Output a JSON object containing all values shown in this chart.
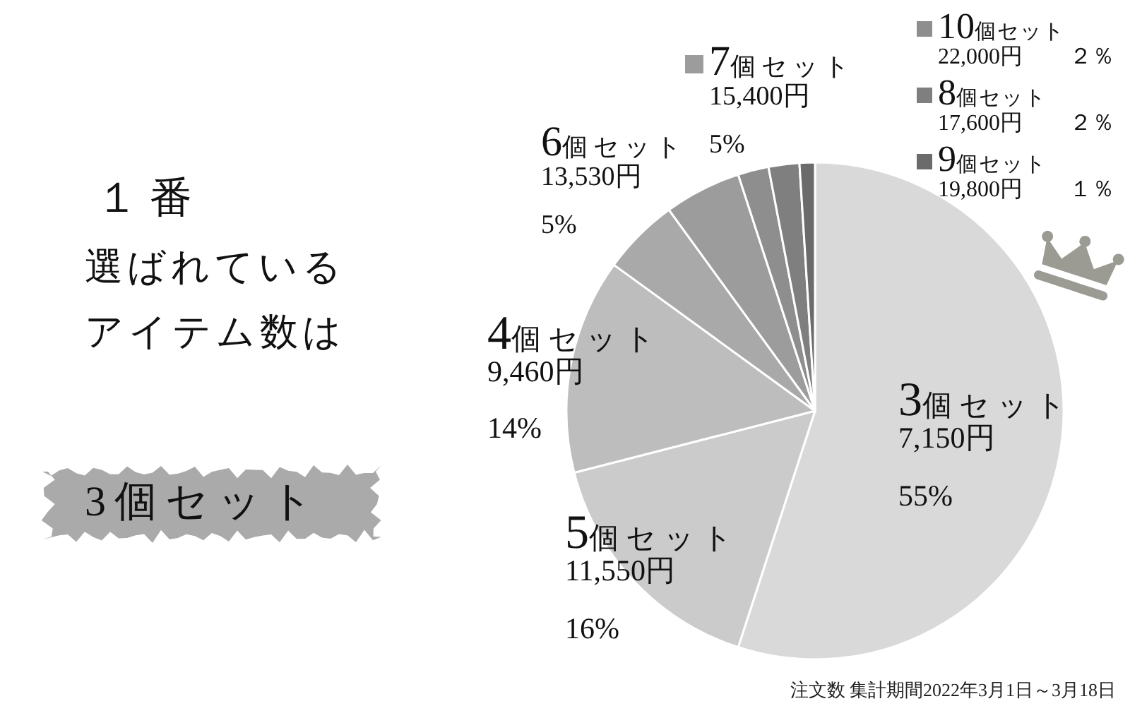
{
  "chart_data": {
    "type": "pie",
    "title": "１番",
    "subtitle": "選ばれているアイテム数は",
    "categories": [
      "3個セット\n7,150円",
      "5個セット\n11,550円",
      "4個セット\n9,460円",
      "6個セット\n13,530円",
      "7個セット\n15,400円",
      "10個セット\n22,000円",
      "8個セット\n17,600円",
      "9個セット\n19,800円"
    ],
    "values": [
      55,
      16,
      14,
      5,
      5,
      2,
      2,
      1
    ],
    "colors": [
      "#d9d9d9",
      "#cbcbcb",
      "#bdbdbd",
      "#a9a9a9",
      "#9c9c9c",
      "#8e8e8e",
      "#7f7f7f",
      "#6b6b6b"
    ],
    "value_labels": [
      "55%",
      "16%",
      "14%",
      "5%",
      "5%",
      "２％",
      "２％",
      "１％"
    ],
    "legend": "top right",
    "annotations": [
      "3個セット",
      "注文数 集計期間2022年3月1日～3月18日"
    ]
  }
}
